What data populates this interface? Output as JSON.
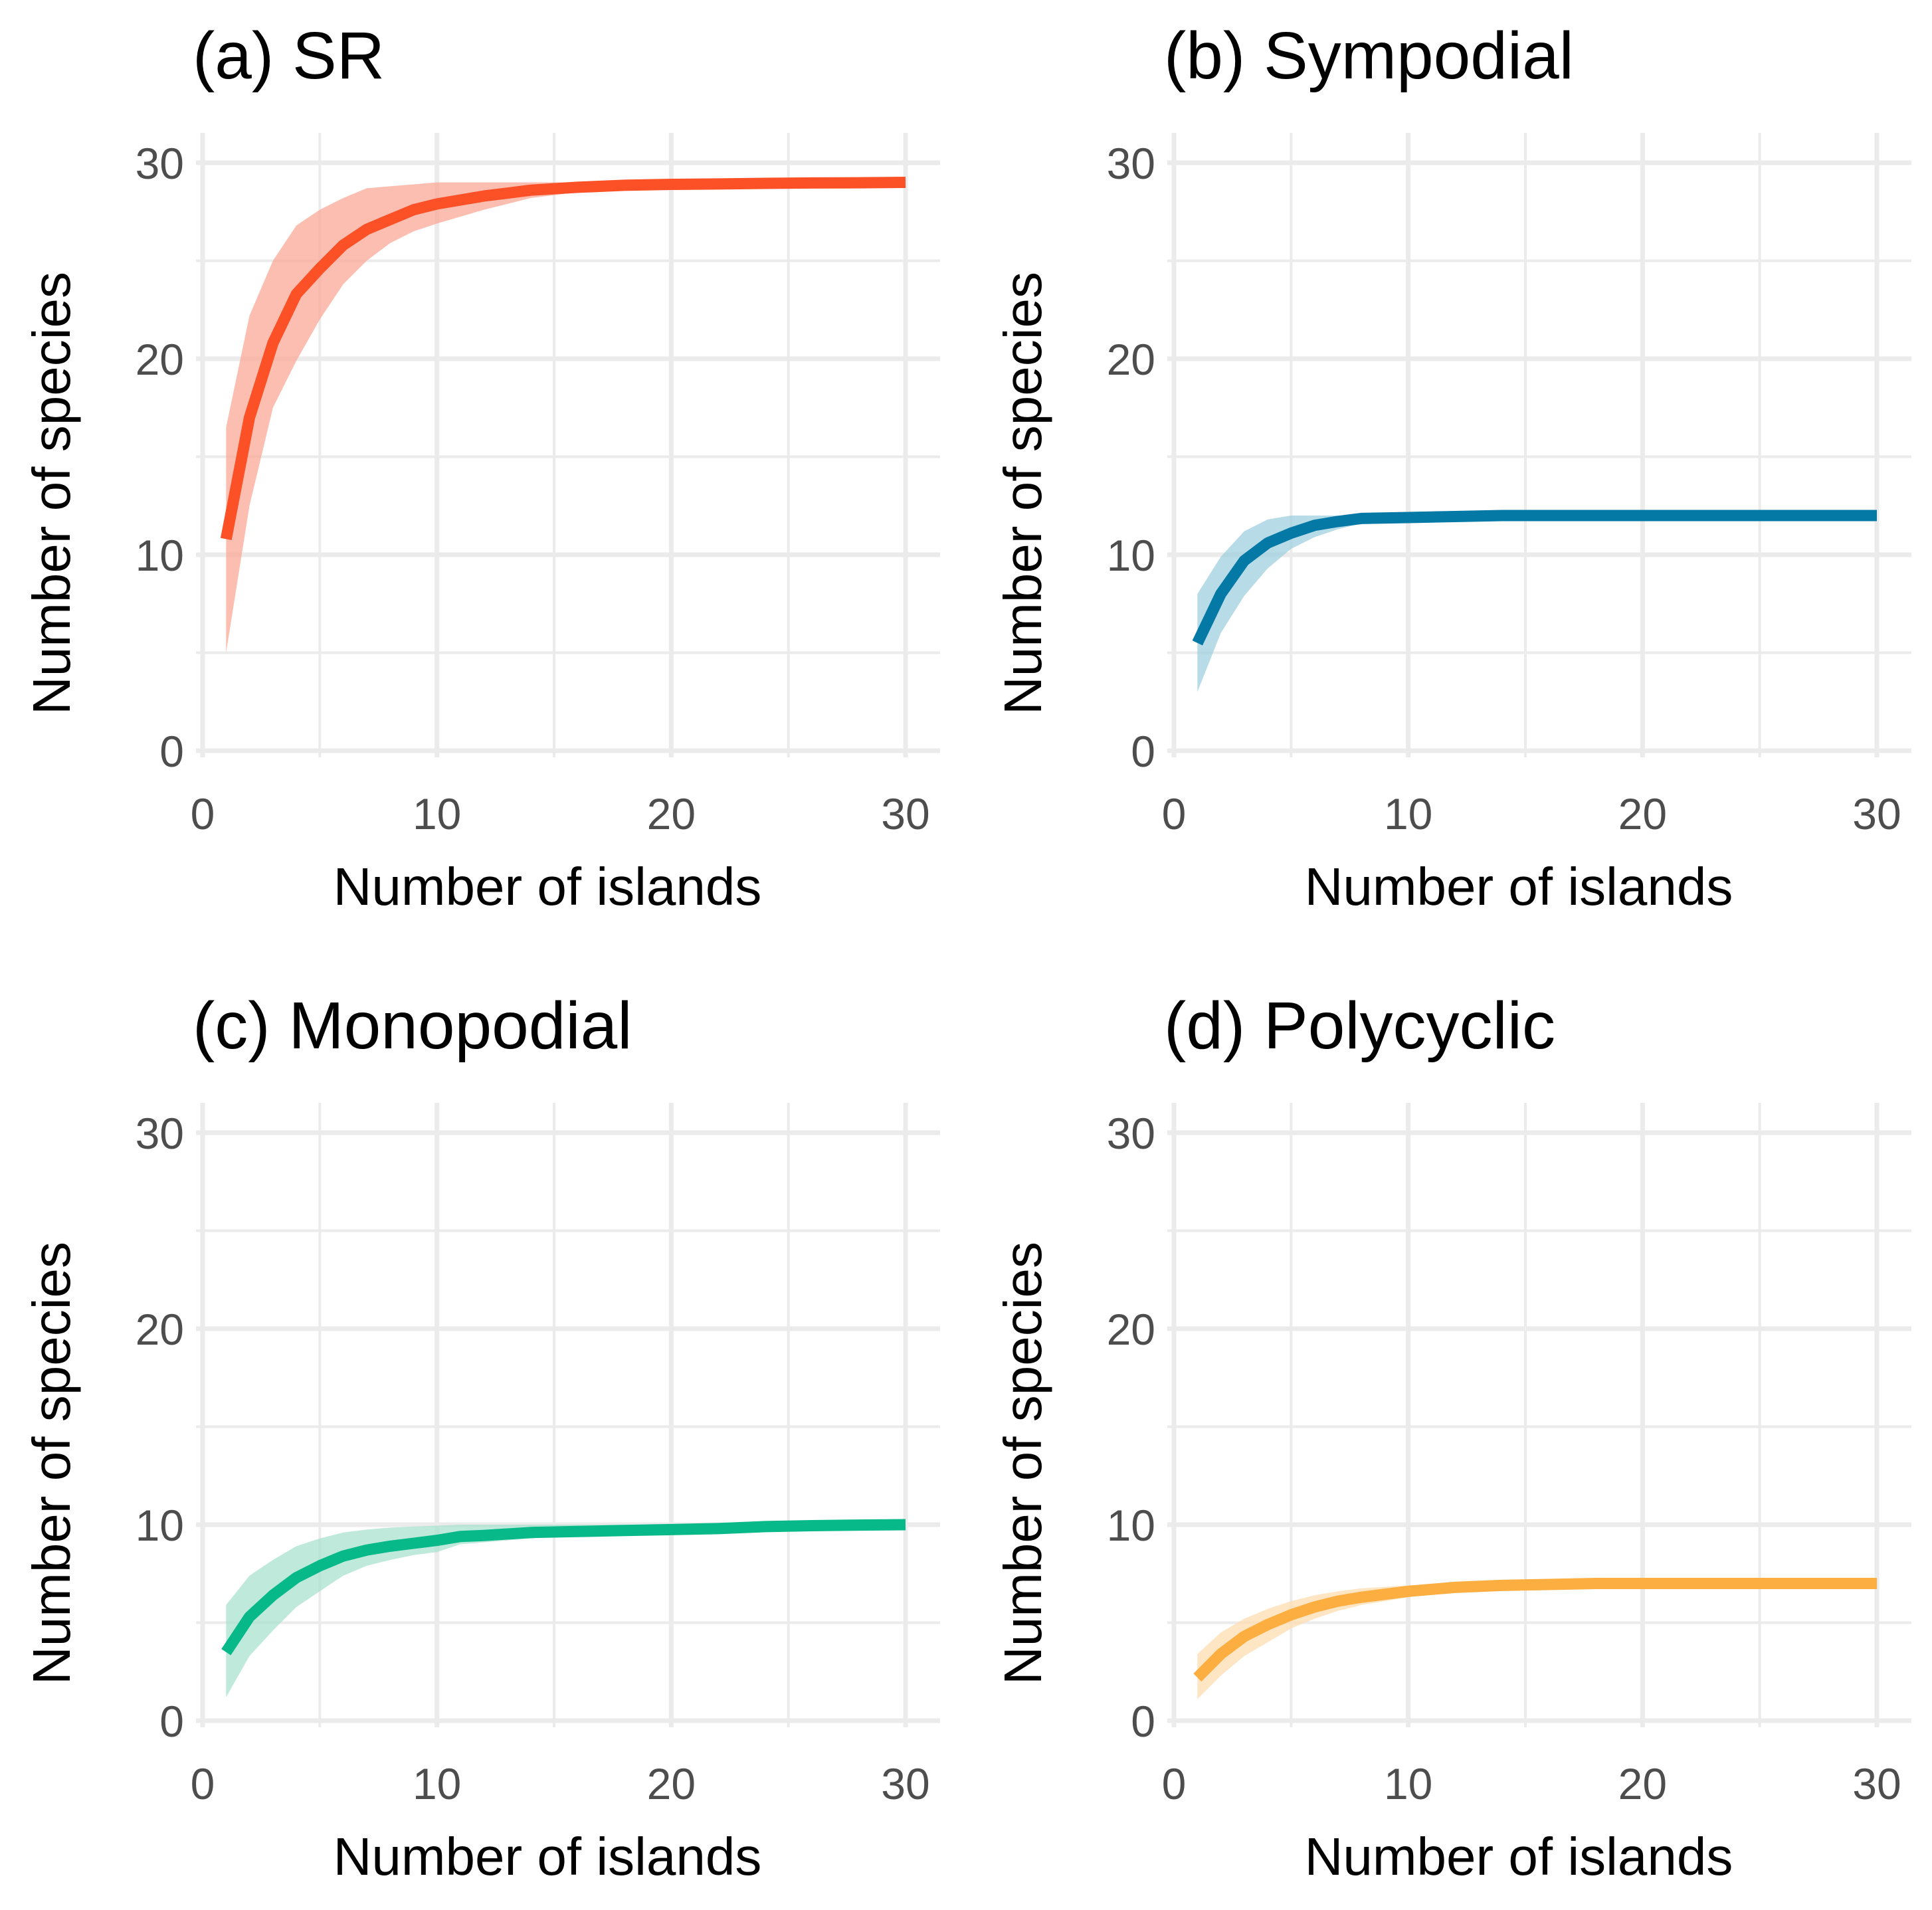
{
  "chart_data": [
    {
      "type": "line",
      "panel": "a",
      "title": "(a) SR",
      "xlabel": "Number of islands",
      "ylabel": "Number of species",
      "xlim": [
        0,
        31
      ],
      "ylim": [
        0,
        30
      ],
      "xticks": [
        "0",
        "10",
        "20",
        "30"
      ],
      "yticks": [
        "0",
        "10",
        "20",
        "30"
      ],
      "color": "#fc5127",
      "band_color": "#fba896",
      "x": [
        1,
        2,
        3,
        4,
        5,
        6,
        7,
        8,
        9,
        10,
        12,
        14,
        16,
        18,
        20,
        22,
        24,
        26,
        28,
        30
      ],
      "y": [
        10.8,
        17.0,
        20.8,
        23.3,
        24.6,
        25.8,
        26.6,
        27.1,
        27.6,
        27.9,
        28.3,
        28.6,
        28.75,
        28.85,
        28.9,
        28.92,
        28.95,
        28.97,
        28.98,
        29.0
      ],
      "lower": [
        5.0,
        12.5,
        17.5,
        19.9,
        22.0,
        23.8,
        25.0,
        25.9,
        26.5,
        26.9,
        27.6,
        28.2,
        28.5,
        28.75,
        28.85,
        28.9,
        28.93,
        28.96,
        28.98,
        29.0
      ],
      "upper": [
        16.5,
        22.2,
        25.0,
        26.8,
        27.6,
        28.2,
        28.7,
        28.8,
        28.9,
        29.0,
        29.0,
        29.0,
        29.0,
        29.0,
        29.0,
        29.0,
        29.0,
        29.0,
        29.0,
        29.0
      ]
    },
    {
      "type": "line",
      "panel": "b",
      "title": "(b) Sympodial",
      "xlabel": "Number of islands",
      "ylabel": "Number of species",
      "xlim": [
        0,
        31
      ],
      "ylim": [
        0,
        30
      ],
      "xticks": [
        "0",
        "10",
        "20",
        "30"
      ],
      "yticks": [
        "0",
        "10",
        "20",
        "30"
      ],
      "color": "#0579a6",
      "band_color": "#9fd0df",
      "x": [
        1,
        2,
        3,
        4,
        5,
        6,
        7,
        8,
        10,
        12,
        14,
        16,
        18,
        20,
        22,
        24,
        26,
        28,
        30
      ],
      "y": [
        5.5,
        8.0,
        9.7,
        10.6,
        11.1,
        11.5,
        11.7,
        11.85,
        11.9,
        11.95,
        12.0,
        12.0,
        12.0,
        12.0,
        12.0,
        12.0,
        12.0,
        12.0,
        12.0
      ],
      "lower": [
        3.0,
        6.0,
        7.9,
        9.3,
        10.3,
        10.9,
        11.3,
        11.6,
        11.85,
        11.95,
        12.0,
        12.0,
        12.0,
        12.0,
        12.0,
        12.0,
        12.0,
        12.0,
        12.0
      ],
      "upper": [
        8.0,
        9.9,
        11.2,
        11.8,
        12.0,
        12.0,
        12.0,
        12.0,
        12.0,
        12.0,
        12.0,
        12.0,
        12.0,
        12.0,
        12.0,
        12.0,
        12.0,
        12.0,
        12.0
      ]
    },
    {
      "type": "line",
      "panel": "c",
      "title": "(c) Monopodial",
      "xlabel": "Number of islands",
      "ylabel": "Number of species",
      "xlim": [
        0,
        31
      ],
      "ylim": [
        0,
        30
      ],
      "xticks": [
        "0",
        "10",
        "20",
        "30"
      ],
      "yticks": [
        "0",
        "10",
        "20",
        "30"
      ],
      "color": "#07b988",
      "band_color": "#a8e2cf",
      "x": [
        1,
        2,
        3,
        4,
        5,
        6,
        7,
        8,
        9,
        10,
        11,
        12,
        14,
        16,
        18,
        20,
        22,
        24,
        26,
        28,
        30
      ],
      "y": [
        3.5,
        5.3,
        6.4,
        7.3,
        7.9,
        8.4,
        8.7,
        8.9,
        9.05,
        9.2,
        9.4,
        9.45,
        9.6,
        9.65,
        9.7,
        9.75,
        9.8,
        9.9,
        9.95,
        9.98,
        10.0
      ],
      "lower": [
        1.2,
        3.3,
        4.6,
        5.8,
        6.6,
        7.4,
        7.9,
        8.2,
        8.45,
        8.6,
        9.0,
        9.1,
        9.3,
        9.5,
        9.6,
        9.7,
        9.75,
        9.85,
        9.9,
        9.95,
        10.0
      ],
      "upper": [
        5.9,
        7.4,
        8.2,
        8.9,
        9.3,
        9.6,
        9.75,
        9.85,
        9.9,
        9.95,
        10.0,
        10.0,
        10.0,
        10.0,
        10.0,
        10.0,
        10.0,
        10.0,
        10.0,
        10.0,
        10.0
      ]
    },
    {
      "type": "line",
      "panel": "d",
      "title": "(d) Polycyclic",
      "xlabel": "Number of islands",
      "ylabel": "Number of species",
      "xlim": [
        0,
        31
      ],
      "ylim": [
        0,
        30
      ],
      "xticks": [
        "0",
        "10",
        "20",
        "30"
      ],
      "yticks": [
        "0",
        "10",
        "20",
        "30"
      ],
      "color": "#fdae40",
      "band_color": "#fddcb0",
      "x": [
        1,
        2,
        3,
        4,
        5,
        6,
        7,
        8,
        10,
        12,
        14,
        16,
        18,
        20,
        22,
        24,
        26,
        28,
        30
      ],
      "y": [
        2.2,
        3.4,
        4.3,
        4.9,
        5.4,
        5.8,
        6.1,
        6.3,
        6.6,
        6.8,
        6.9,
        6.95,
        7.0,
        7.0,
        7.0,
        7.0,
        7.0,
        7.0,
        7.0
      ],
      "lower": [
        1.1,
        2.3,
        3.3,
        4.0,
        4.7,
        5.2,
        5.6,
        5.9,
        6.3,
        6.6,
        6.8,
        6.9,
        7.0,
        7.0,
        7.0,
        7.0,
        7.0,
        7.0,
        7.0
      ],
      "upper": [
        3.4,
        4.5,
        5.2,
        5.7,
        6.1,
        6.4,
        6.6,
        6.75,
        6.9,
        7.0,
        7.0,
        7.0,
        7.0,
        7.0,
        7.0,
        7.0,
        7.0,
        7.0,
        7.0
      ]
    }
  ]
}
